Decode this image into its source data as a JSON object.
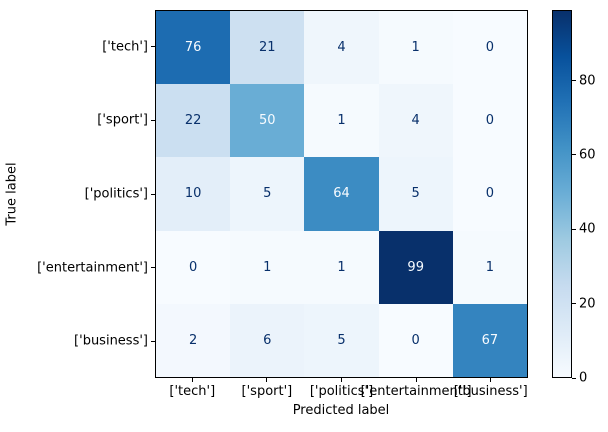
{
  "chart_data": {
    "type": "heatmap",
    "title": "",
    "xlabel": "Predicted label",
    "ylabel": "True label",
    "x_categories": [
      "['tech']",
      "['sport']",
      "['politics']",
      "['entertainment']",
      "['business']"
    ],
    "y_categories": [
      "['tech']",
      "['sport']",
      "['politics']",
      "['entertainment']",
      "['business']"
    ],
    "matrix": [
      [
        76,
        21,
        4,
        1,
        0
      ],
      [
        22,
        50,
        1,
        4,
        0
      ],
      [
        10,
        5,
        64,
        5,
        0
      ],
      [
        0,
        1,
        1,
        99,
        1
      ],
      [
        2,
        6,
        5,
        0,
        67
      ]
    ],
    "vmin": 0,
    "vmax": 99,
    "colormap": "Blues",
    "colormap_anchor_colors": [
      "#f7fbff",
      "#deebf7",
      "#c6dbef",
      "#9ecae1",
      "#6baed6",
      "#4292c6",
      "#2171b5",
      "#08519c",
      "#08306b"
    ],
    "text_color_light": "#f7fbff",
    "text_color_dark": "#08306b",
    "colorbar": {
      "ticks": [
        0,
        20,
        40,
        60,
        80
      ],
      "tick_labels": [
        "0",
        "20",
        "40",
        "60",
        "80"
      ]
    },
    "grid": false,
    "legend_position": "colorbar-right"
  }
}
